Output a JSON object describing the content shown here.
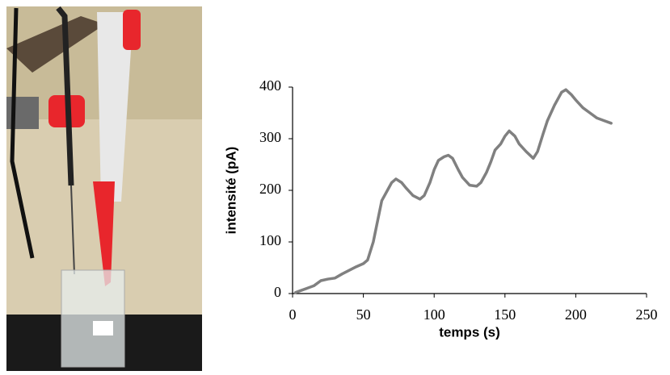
{
  "chart_data": {
    "type": "line",
    "xlabel": "temps (s)",
    "ylabel": "intensité (pA)",
    "x": [
      2,
      5,
      10,
      15,
      20,
      25,
      30,
      35,
      40,
      45,
      50,
      53,
      57,
      60,
      63,
      67,
      70,
      73,
      77,
      80,
      85,
      90,
      93,
      97,
      100,
      103,
      107,
      110,
      113,
      117,
      120,
      125,
      130,
      133,
      137,
      140,
      143,
      147,
      150,
      153,
      157,
      160,
      165,
      170,
      173,
      177,
      180,
      185,
      190,
      193,
      197,
      200,
      205,
      210,
      215,
      220,
      225
    ],
    "values": [
      2,
      5,
      10,
      15,
      25,
      28,
      30,
      38,
      45,
      52,
      58,
      65,
      100,
      140,
      180,
      200,
      215,
      222,
      215,
      205,
      190,
      183,
      190,
      215,
      240,
      258,
      265,
      268,
      262,
      240,
      225,
      210,
      208,
      215,
      235,
      255,
      278,
      290,
      305,
      315,
      305,
      290,
      275,
      262,
      275,
      310,
      335,
      365,
      390,
      395,
      385,
      375,
      360,
      350,
      340,
      335,
      330
    ],
    "color": "#808080",
    "xlim": [
      0,
      250
    ],
    "xticks": [
      0,
      50,
      100,
      150,
      200,
      250
    ],
    "ylim": [
      0,
      400
    ],
    "yticks": [
      0,
      100,
      200,
      300,
      400
    ]
  }
}
